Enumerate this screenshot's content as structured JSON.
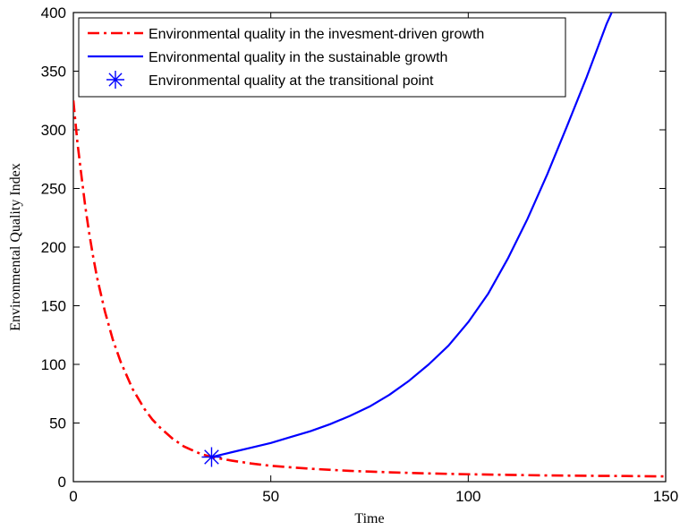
{
  "chart_data": {
    "type": "line",
    "xlabel": "Time",
    "ylabel": "Environmental Quality Index",
    "xlim": [
      0,
      150
    ],
    "ylim": [
      0,
      400
    ],
    "xticks": [
      0,
      50,
      100,
      150
    ],
    "yticks": [
      0,
      50,
      100,
      150,
      200,
      250,
      300,
      350,
      400
    ],
    "grid": false,
    "legend_position": "top-left",
    "series": [
      {
        "name": "Environmental quality in the invesment-driven growth",
        "style": "dash-dot",
        "color": "#ff0000",
        "x": [
          0,
          1,
          2,
          3,
          4,
          5,
          6,
          8,
          10,
          12,
          15,
          18,
          20,
          22,
          25,
          28,
          30,
          32,
          35,
          40,
          45,
          50,
          60,
          70,
          80,
          90,
          100,
          110,
          120,
          130,
          140,
          150
        ],
        "y": [
          325,
          290,
          262,
          235,
          212,
          192,
          174,
          145,
          121,
          102,
          79,
          62,
          53,
          46,
          37,
          30,
          27,
          24,
          21,
          18,
          15.5,
          13.5,
          11,
          9.2,
          8,
          7,
          6.3,
          5.8,
          5.3,
          5,
          4.8,
          4.5
        ]
      },
      {
        "name": "Environmental quality in the sustainable growth",
        "style": "solid",
        "color": "#0000ff",
        "x": [
          35,
          40,
          45,
          50,
          55,
          60,
          65,
          70,
          75,
          80,
          85,
          90,
          95,
          100,
          105,
          110,
          115,
          120,
          125,
          130,
          135,
          137
        ],
        "y": [
          21,
          25,
          29,
          33,
          38,
          43,
          49,
          56,
          64,
          74,
          86,
          100,
          116,
          136,
          160,
          190,
          224,
          262,
          303,
          345,
          390,
          405
        ]
      },
      {
        "name": "Environmental quality at the transitional point",
        "style": "marker",
        "marker": "asterisk",
        "color": "#0000ff",
        "x": [
          35
        ],
        "y": [
          21
        ]
      }
    ]
  }
}
